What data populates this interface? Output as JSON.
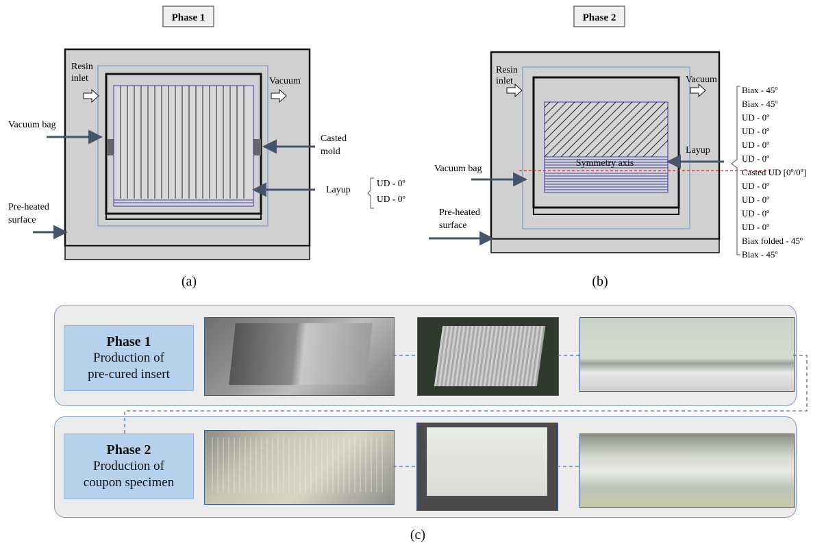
{
  "panel_a": {
    "title": "Phase 1",
    "resin_inlet_1": "Resin",
    "resin_inlet_2": "inlet",
    "vacuum": "Vacuum",
    "vacuum_bag": "Vacuum bag",
    "casted_mold_1": "Casted",
    "casted_mold_2": "mold",
    "layup": "Layup",
    "layup_items": [
      "UD - 0º",
      "UD - 0º"
    ],
    "preheated_1": "Pre-heated",
    "preheated_2": "surface",
    "caption": "(a)"
  },
  "panel_b": {
    "title": "Phase 2",
    "resin_inlet_1": "Resin",
    "resin_inlet_2": "inlet",
    "vacuum": "Vacuum",
    "vacuum_bag": "Vacuum bag",
    "symmetry_axis": "Symmetry axis",
    "layup": "Layup",
    "layup_items": [
      "Biax - 45º",
      "Biax - 45º",
      "UD - 0º",
      "UD - 0º",
      "UD - 0º",
      "UD - 0º",
      "Casted UD [0º/0º]",
      "UD - 0º",
      "UD - 0º",
      "UD - 0º",
      "UD - 0º",
      "Biax folded - 45º",
      "Biax - 45º"
    ],
    "preheated_1": "Pre-heated",
    "preheated_2": "surface",
    "caption": "(b)"
  },
  "panel_c": {
    "phase1_title": "Phase 1",
    "phase1_line1": "Production of",
    "phase1_line2": "pre-cured insert",
    "phase2_title": "Phase 2",
    "phase2_line1": "Production of",
    "phase2_line2": "coupon specimen",
    "caption": "(c)"
  },
  "colors": {
    "arrow": "#44546a",
    "fiber_lines": "#3a3aa8",
    "symmetry_line": "#e02020",
    "mold_gray": "#d0d0d0",
    "phase_box": "#b7d0ec"
  }
}
